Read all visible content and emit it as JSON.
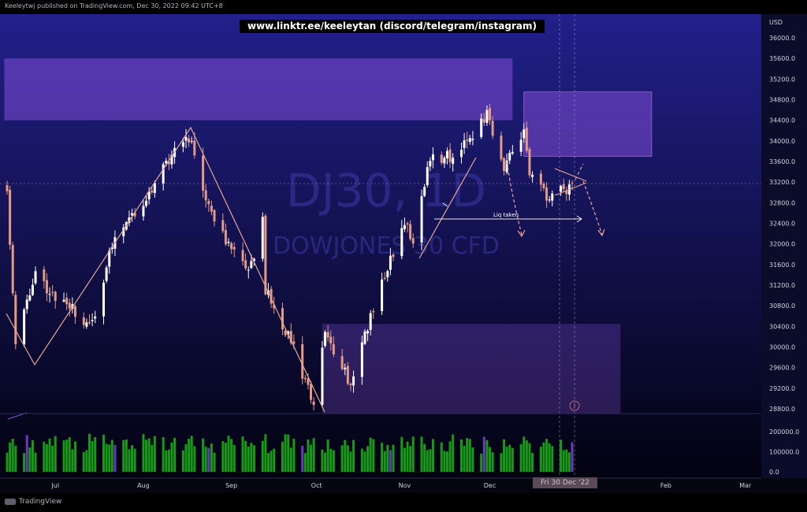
{
  "header": {
    "published": "Keeleytwj published on TradingView.com, Dec 30, 2022 09:42 UTC+8"
  },
  "banner": {
    "text": "www.linktr.ee/keeleytan (discord/telegram/instagram)"
  },
  "watermark": {
    "symbol": "DJ30, 1D",
    "description": "DOWJONES 30 CFD"
  },
  "footer": {
    "brand": "TradingView"
  },
  "annotations": {
    "liq_taken": "Liq taken"
  },
  "axis": {
    "currency": "USD",
    "current_date": "Fri 30 Dec '22"
  },
  "colors": {
    "background_top": "#22208a",
    "background_bottom": "#020210",
    "up": "#ffffff",
    "down": "#e39a86",
    "volume_up": "#179a17",
    "volume_down": "#6b3ab8",
    "zone": "#8a52e0",
    "line": "#e9a594"
  },
  "chart_data": [
    {
      "type": "candlestick",
      "symbol": "DJ30, 1D",
      "ylabel": "USD",
      "ylim": [
        28700,
        36300
      ],
      "yticks": [
        36000,
        35600,
        35200,
        34800,
        34400,
        34000,
        33600,
        33200,
        32800,
        32400,
        32000,
        31600,
        31200,
        30800,
        30400,
        30000,
        29600,
        29200,
        28800
      ],
      "xticks": [
        "Jul",
        "Aug",
        "Sep",
        "Oct",
        "Nov",
        "Dec",
        "Feb",
        "Mar"
      ],
      "close_anchors": [
        {
          "date": "2022-06-14",
          "close": 33150
        },
        {
          "date": "2022-06-17",
          "close": 30000
        },
        {
          "date": "2022-06-24",
          "close": 31500
        },
        {
          "date": "2022-06-30",
          "close": 31000
        },
        {
          "date": "2022-07-14",
          "close": 30400
        },
        {
          "date": "2022-07-22",
          "close": 32200
        },
        {
          "date": "2022-08-01",
          "close": 32800
        },
        {
          "date": "2022-08-12",
          "close": 33800
        },
        {
          "date": "2022-08-16",
          "close": 34200
        },
        {
          "date": "2022-08-19",
          "close": 33700
        },
        {
          "date": "2022-08-26",
          "close": 32400
        },
        {
          "date": "2022-09-07",
          "close": 31400
        },
        {
          "date": "2022-09-12",
          "close": 32500
        },
        {
          "date": "2022-09-13",
          "close": 31100
        },
        {
          "date": "2022-09-23",
          "close": 30000
        },
        {
          "date": "2022-09-30",
          "close": 28800
        },
        {
          "date": "2022-10-04",
          "close": 30300
        },
        {
          "date": "2022-10-13",
          "close": 29300
        },
        {
          "date": "2022-10-21",
          "close": 30800
        },
        {
          "date": "2022-11-01",
          "close": 32400
        },
        {
          "date": "2022-11-04",
          "close": 32100
        },
        {
          "date": "2022-11-10",
          "close": 33700
        },
        {
          "date": "2022-11-18",
          "close": 33700
        },
        {
          "date": "2022-11-30",
          "close": 34500
        },
        {
          "date": "2022-12-06",
          "close": 33500
        },
        {
          "date": "2022-12-13",
          "close": 34200
        },
        {
          "date": "2022-12-15",
          "close": 33300
        },
        {
          "date": "2022-12-22",
          "close": 32900
        },
        {
          "date": "2022-12-30",
          "close": 33100
        }
      ],
      "zones": [
        {
          "name": "upper-supply",
          "from": "2022-06-13",
          "to": "2022-12-09",
          "low": 34400,
          "high": 35600
        },
        {
          "name": "dec-supply",
          "from": "2022-12-13",
          "to": "2023-01-27",
          "low": 33700,
          "high": 34950
        },
        {
          "name": "lower-demand",
          "from": "2022-10-03",
          "to": "2023-01-16",
          "low": 28700,
          "high": 30450
        }
      ]
    },
    {
      "type": "bar",
      "name": "volume",
      "ylim": [
        0,
        280000
      ],
      "yticks": [
        200000,
        100000,
        0
      ],
      "ytick_labels": [
        "200000.0",
        "100000.0",
        "0.0"
      ]
    }
  ]
}
